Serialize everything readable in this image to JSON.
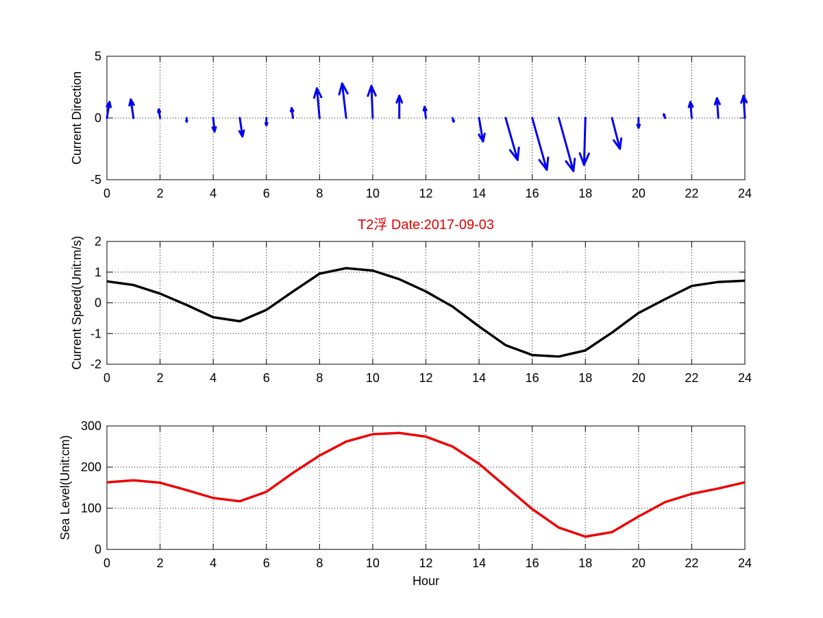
{
  "chart_data": [
    {
      "type": "quiver",
      "title": "",
      "xlabel": "",
      "ylabel": "Current Direction",
      "xlim": [
        0,
        24
      ],
      "ylim": [
        -5,
        5
      ],
      "xticks": [
        0,
        2,
        4,
        6,
        8,
        10,
        12,
        14,
        16,
        18,
        20,
        22,
        24
      ],
      "yticks": [
        -5,
        0,
        5
      ],
      "grid": true,
      "color": "#0000ee",
      "x": [
        0,
        1,
        2,
        3,
        4,
        5,
        6,
        7,
        8,
        9,
        10,
        11,
        12,
        13,
        14,
        15,
        16,
        17,
        18,
        19,
        20,
        21,
        22,
        23,
        24
      ],
      "u": [
        0.1,
        -0.1,
        -0.05,
        0.0,
        0.05,
        0.1,
        0.0,
        -0.05,
        -0.1,
        -0.15,
        -0.05,
        0.0,
        -0.05,
        0.05,
        0.15,
        0.45,
        0.55,
        0.55,
        -0.05,
        0.3,
        0.0,
        -0.05,
        -0.05,
        -0.05,
        -0.05
      ],
      "v": [
        1.3,
        1.5,
        0.7,
        -0.3,
        -1.1,
        -1.5,
        -0.6,
        0.8,
        2.4,
        2.8,
        2.6,
        1.8,
        0.9,
        -0.3,
        -1.9,
        -3.4,
        -4.2,
        -4.3,
        -3.8,
        -2.5,
        -0.8,
        0.3,
        1.3,
        1.6,
        1.8
      ]
    },
    {
      "type": "line",
      "title": "T2浮    Date:2017-09-03",
      "xlabel": "",
      "ylabel": "Current Speed(Unit:m/s)",
      "xlim": [
        0,
        24
      ],
      "ylim": [
        -2,
        2
      ],
      "xticks": [
        0,
        2,
        4,
        6,
        8,
        10,
        12,
        14,
        16,
        18,
        20,
        22,
        24
      ],
      "yticks": [
        -2,
        -1,
        0,
        1,
        2
      ],
      "grid": true,
      "color": "#000000",
      "x": [
        0,
        1,
        2,
        3,
        4,
        5,
        6,
        7,
        8,
        9,
        10,
        11,
        12,
        13,
        14,
        15,
        16,
        17,
        18,
        19,
        20,
        21,
        22,
        23,
        24
      ],
      "values": [
        0.7,
        0.58,
        0.3,
        -0.07,
        -0.47,
        -0.6,
        -0.23,
        0.37,
        0.95,
        1.13,
        1.05,
        0.77,
        0.37,
        -0.12,
        -0.77,
        -1.38,
        -1.7,
        -1.75,
        -1.55,
        -0.97,
        -0.33,
        0.12,
        0.55,
        0.68,
        0.72
      ]
    },
    {
      "type": "line",
      "title": "",
      "xlabel": "Hour",
      "ylabel": "Sea Level(Unit:cm)",
      "xlim": [
        0,
        24
      ],
      "ylim": [
        0,
        300
      ],
      "xticks": [
        0,
        2,
        4,
        6,
        8,
        10,
        12,
        14,
        16,
        18,
        20,
        22,
        24
      ],
      "yticks": [
        0,
        100,
        200,
        300
      ],
      "grid": true,
      "color": "#ee0000",
      "x": [
        0,
        1,
        2,
        3,
        4,
        5,
        6,
        7,
        8,
        9,
        10,
        11,
        12,
        13,
        14,
        15,
        16,
        17,
        18,
        19,
        20,
        21,
        22,
        23,
        24
      ],
      "values": [
        163,
        168,
        162,
        144,
        125,
        117,
        140,
        186,
        228,
        262,
        280,
        283,
        274,
        250,
        208,
        153,
        98,
        53,
        31,
        42,
        80,
        115,
        135,
        148,
        163
      ]
    }
  ]
}
